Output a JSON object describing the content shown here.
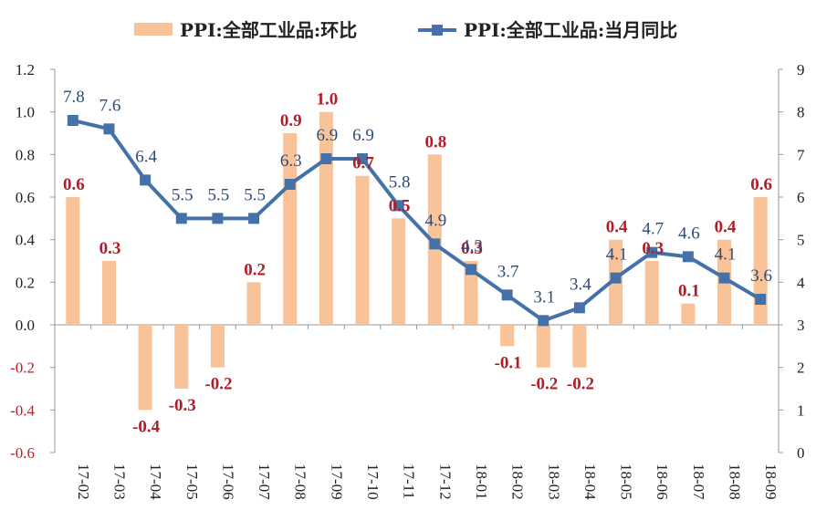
{
  "chart_data": {
    "type": "bar",
    "categories": [
      "17-02",
      "17-03",
      "17-04",
      "17-05",
      "17-06",
      "17-07",
      "17-08",
      "17-09",
      "17-10",
      "17-11",
      "17-12",
      "18-01",
      "18-02",
      "18-03",
      "18-04",
      "18-05",
      "18-06",
      "18-07",
      "18-08",
      "18-09"
    ],
    "series": [
      {
        "name": "PPI:全部工业品:环比",
        "type": "bar",
        "axis": "left",
        "color": "#f9c39a",
        "label_color": "#b01e2a",
        "values": [
          0.6,
          0.3,
          -0.4,
          -0.3,
          -0.2,
          0.2,
          0.9,
          1.0,
          0.7,
          0.5,
          0.8,
          0.3,
          -0.1,
          -0.2,
          -0.2,
          0.4,
          0.3,
          0.1,
          0.4,
          0.6
        ]
      },
      {
        "name": "PPI:全部工业品:当月同比",
        "type": "line",
        "axis": "right",
        "color": "#4472a8",
        "label_color": "#2e4b78",
        "values": [
          7.8,
          7.6,
          6.4,
          5.5,
          5.5,
          5.5,
          6.3,
          6.9,
          6.9,
          5.8,
          4.9,
          4.3,
          3.7,
          3.1,
          3.4,
          4.1,
          4.7,
          4.6,
          4.1,
          3.6
        ]
      }
    ],
    "left_axis": {
      "ylim": [
        -0.6,
        1.2
      ],
      "ticks": [
        "-0.6",
        "-0.4",
        "-0.2",
        "0.0",
        "0.2",
        "0.4",
        "0.6",
        "0.8",
        "1.0",
        "1.2"
      ],
      "positive_color": "#222222",
      "negative_color": "#c0202a"
    },
    "right_axis": {
      "ylim": [
        0,
        9
      ],
      "ticks": [
        "0",
        "1",
        "2",
        "3",
        "4",
        "5",
        "6",
        "7",
        "8",
        "9"
      ]
    },
    "legend_position": "top",
    "grid": false
  }
}
